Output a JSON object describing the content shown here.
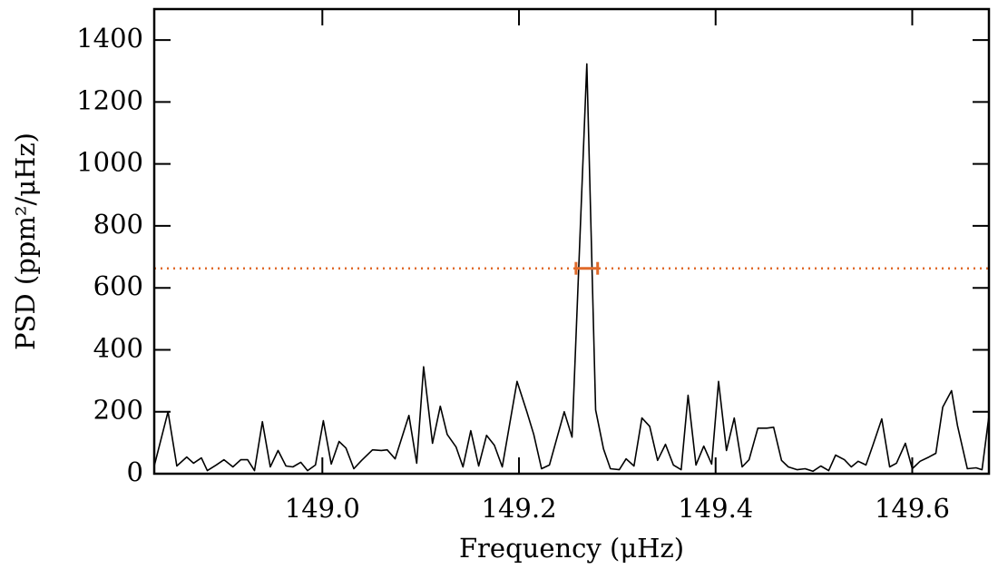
{
  "chart_data": {
    "type": "line",
    "xlabel": "Frequency (μHz)",
    "ylabel": "PSD (ppm²/μHz)",
    "xlim": [
      148.829,
      149.678
    ],
    "ylim": [
      0,
      1500
    ],
    "xticks": [
      {
        "value": 149.0,
        "label": "149.0"
      },
      149.2,
      149.4,
      149.6
    ],
    "yticks": [
      0,
      200,
      400,
      600,
      800,
      1000,
      1200,
      1400
    ],
    "series": [
      {
        "color": "#000000",
        "x": [
          148.829,
          148.843,
          148.852,
          148.862,
          148.869,
          148.877,
          148.883,
          148.892,
          148.9,
          148.909,
          148.917,
          148.924,
          148.931,
          148.939,
          148.947,
          148.955,
          148.963,
          148.97,
          148.978,
          148.985,
          148.993,
          149.001,
          149.009,
          149.017,
          149.024,
          149.032,
          149.04,
          149.051,
          149.06,
          149.066,
          149.074,
          149.088,
          149.096,
          149.103,
          149.112,
          149.12,
          149.127,
          149.136,
          149.143,
          149.151,
          149.159,
          149.167,
          149.175,
          149.183,
          149.198,
          149.208,
          149.215,
          149.223,
          149.231,
          149.246,
          149.254,
          149.269,
          149.278,
          149.286,
          149.293,
          149.302,
          149.309,
          149.317,
          149.325,
          149.333,
          149.341,
          149.349,
          149.357,
          149.365,
          149.372,
          149.38,
          149.388,
          149.396,
          149.403,
          149.411,
          149.419,
          149.427,
          149.434,
          149.443,
          149.452,
          149.459,
          149.467,
          149.474,
          149.483,
          149.491,
          149.499,
          149.507,
          149.515,
          149.522,
          149.531,
          149.538,
          149.545,
          149.553,
          149.56,
          149.569,
          149.577,
          149.584,
          149.593,
          149.6,
          149.608,
          149.617,
          149.624,
          149.631,
          149.64,
          149.646,
          149.656,
          149.665,
          149.671,
          149.678
        ],
        "values": [
          25,
          200,
          25,
          54,
          34,
          51,
          10,
          28,
          45,
          22,
          45,
          45,
          10,
          168,
          22,
          75,
          25,
          22,
          37,
          10,
          28,
          171,
          31,
          104,
          83,
          16,
          43,
          77,
          75,
          77,
          48,
          188,
          34,
          345,
          98,
          218,
          127,
          86,
          22,
          139,
          25,
          124,
          92,
          22,
          298,
          200,
          127,
          16,
          28,
          200,
          118,
          1323,
          206,
          80,
          16,
          13,
          48,
          25,
          180,
          153,
          43,
          95,
          28,
          13,
          253,
          28,
          89,
          31,
          298,
          75,
          180,
          22,
          45,
          147,
          147,
          150,
          43,
          22,
          13,
          16,
          8,
          25,
          10,
          60,
          45,
          22,
          40,
          28,
          92,
          177,
          22,
          34,
          98,
          16,
          40,
          54,
          66,
          215,
          268,
          156,
          16,
          19,
          13,
          186
        ]
      }
    ],
    "threshold": {
      "value": 663,
      "color": "#e06a2a"
    },
    "peak_error": {
      "x": 149.269,
      "xerr": 0.011,
      "color": "#e06a2a"
    }
  }
}
